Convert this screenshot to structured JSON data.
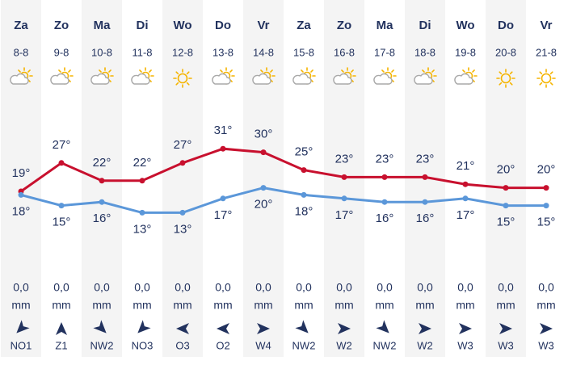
{
  "days": [
    {
      "day": "Za",
      "date": "8-8",
      "icon": "partly-cloudy",
      "max": {
        "value": 19,
        "label": "19°"
      },
      "min": {
        "value": 18,
        "label": "18°"
      },
      "precip": "0,0",
      "unit": "mm",
      "wind": "NO1"
    },
    {
      "day": "Zo",
      "date": "9-8",
      "icon": "partly-cloudy",
      "max": {
        "value": 27,
        "label": "27°"
      },
      "min": {
        "value": 15,
        "label": "15°"
      },
      "precip": "0,0",
      "unit": "mm",
      "wind": "Z1"
    },
    {
      "day": "Ma",
      "date": "10-8",
      "icon": "partly-cloudy",
      "max": {
        "value": 22,
        "label": "22°"
      },
      "min": {
        "value": 16,
        "label": "16°"
      },
      "precip": "0,0",
      "unit": "mm",
      "wind": "NW2"
    },
    {
      "day": "Di",
      "date": "11-8",
      "icon": "partly-cloudy",
      "max": {
        "value": 22,
        "label": "22°"
      },
      "min": {
        "value": 13,
        "label": "13°"
      },
      "precip": "0,0",
      "unit": "mm",
      "wind": "NO3"
    },
    {
      "day": "Wo",
      "date": "12-8",
      "icon": "sunny",
      "max": {
        "value": 27,
        "label": "27°"
      },
      "min": {
        "value": 13,
        "label": "13°"
      },
      "precip": "0,0",
      "unit": "mm",
      "wind": "O3"
    },
    {
      "day": "Do",
      "date": "13-8",
      "icon": "partly-cloudy",
      "max": {
        "value": 31,
        "label": "31°"
      },
      "min": {
        "value": 17,
        "label": "17°"
      },
      "precip": "0,0",
      "unit": "mm",
      "wind": "O2"
    },
    {
      "day": "Vr",
      "date": "14-8",
      "icon": "partly-cloudy",
      "max": {
        "value": 30,
        "label": "30°"
      },
      "min": {
        "value": 20,
        "label": "20°"
      },
      "precip": "0,0",
      "unit": "mm",
      "wind": "W4"
    },
    {
      "day": "Za",
      "date": "15-8",
      "icon": "partly-cloudy",
      "max": {
        "value": 25,
        "label": "25°"
      },
      "min": {
        "value": 18,
        "label": "18°"
      },
      "precip": "0,0",
      "unit": "mm",
      "wind": "NW2"
    },
    {
      "day": "Zo",
      "date": "16-8",
      "icon": "partly-cloudy",
      "max": {
        "value": 23,
        "label": "23°"
      },
      "min": {
        "value": 17,
        "label": "17°"
      },
      "precip": "0,0",
      "unit": "mm",
      "wind": "W2"
    },
    {
      "day": "Ma",
      "date": "17-8",
      "icon": "partly-cloudy",
      "max": {
        "value": 23,
        "label": "23°"
      },
      "min": {
        "value": 16,
        "label": "16°"
      },
      "precip": "0,0",
      "unit": "mm",
      "wind": "NW2"
    },
    {
      "day": "Di",
      "date": "18-8",
      "icon": "partly-cloudy",
      "max": {
        "value": 23,
        "label": "23°"
      },
      "min": {
        "value": 16,
        "label": "16°"
      },
      "precip": "0,0",
      "unit": "mm",
      "wind": "W2"
    },
    {
      "day": "Wo",
      "date": "19-8",
      "icon": "partly-cloudy",
      "max": {
        "value": 21,
        "label": "21°"
      },
      "min": {
        "value": 17,
        "label": "17°"
      },
      "precip": "0,0",
      "unit": "mm",
      "wind": "W3"
    },
    {
      "day": "Do",
      "date": "20-8",
      "icon": "sunny",
      "max": {
        "value": 20,
        "label": "20°"
      },
      "min": {
        "value": 15,
        "label": "15°"
      },
      "precip": "0,0",
      "unit": "mm",
      "wind": "W3"
    },
    {
      "day": "Vr",
      "date": "21-8",
      "icon": "sunny",
      "max": {
        "value": 20,
        "label": "20°"
      },
      "min": {
        "value": 15,
        "label": "15°"
      },
      "precip": "0,0",
      "unit": "mm",
      "wind": "W3"
    }
  ],
  "max_color": "#c8102e",
  "min_color": "#5b97d9"
}
